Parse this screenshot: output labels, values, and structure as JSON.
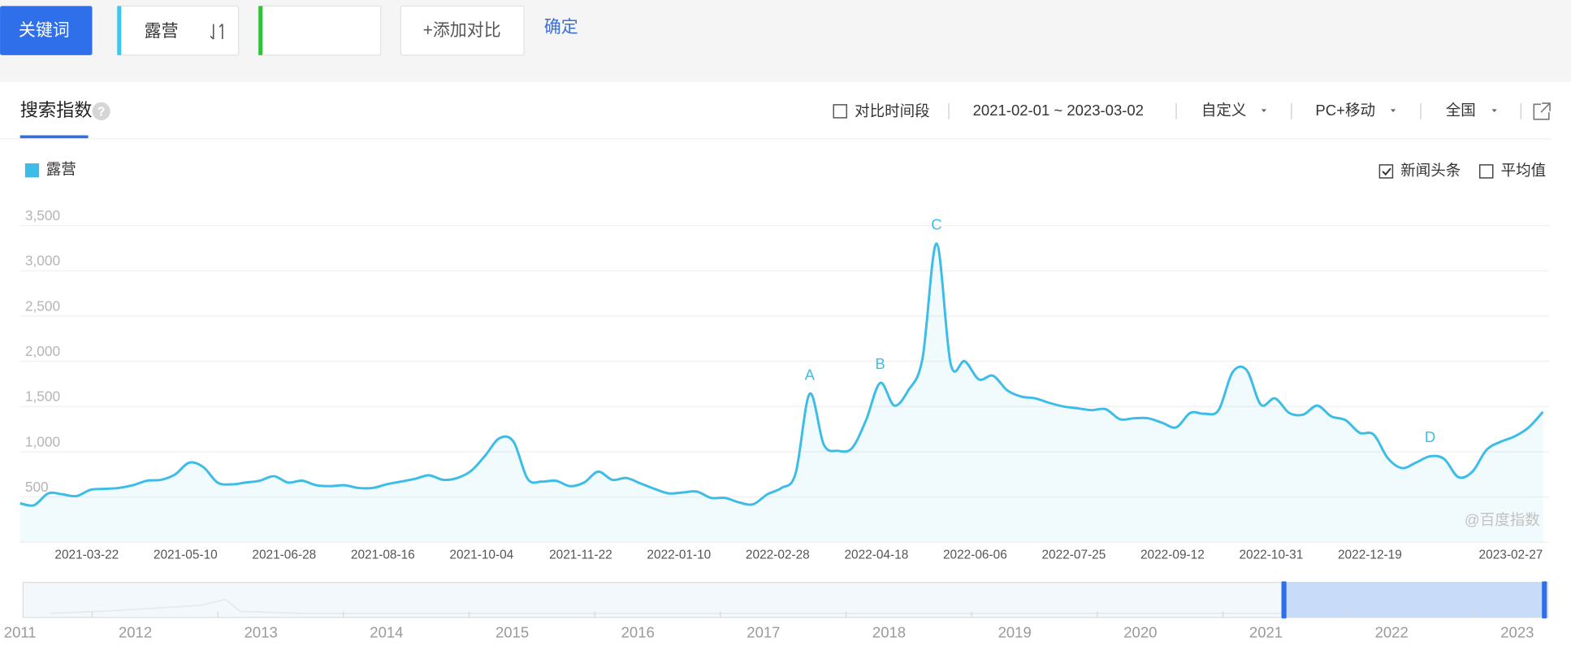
{
  "toolbar": {
    "keyword_button": "关键词",
    "keywords": [
      "露营"
    ],
    "add_compare": "+添加对比",
    "confirm": "确定"
  },
  "tabs": {
    "active": "搜索指数",
    "help": "?"
  },
  "filters": {
    "compare_period": "对比时间段",
    "date_range": "2021-02-01 ~ 2023-03-02",
    "period": "自定义",
    "device": "PC+移动",
    "region": "全国"
  },
  "options": [
    {
      "label": "新闻头条",
      "checked": true
    },
    {
      "label": "平均值",
      "checked": false
    }
  ],
  "watermark": "@百度指数",
  "chart_data": {
    "type": "line",
    "x": [
      "2021-02-01",
      "2021-02-08",
      "2021-02-15",
      "2021-02-22",
      "2021-03-01",
      "2021-03-08",
      "2021-03-15",
      "2021-03-22",
      "2021-03-29",
      "2021-04-05",
      "2021-04-12",
      "2021-04-19",
      "2021-04-26",
      "2021-05-03",
      "2021-05-10",
      "2021-05-17",
      "2021-05-24",
      "2021-05-31",
      "2021-06-07",
      "2021-06-14",
      "2021-06-21",
      "2021-06-28",
      "2021-07-05",
      "2021-07-12",
      "2021-07-19",
      "2021-07-26",
      "2021-08-02",
      "2021-08-09",
      "2021-08-16",
      "2021-08-23",
      "2021-08-30",
      "2021-09-06",
      "2021-09-13",
      "2021-09-20",
      "2021-09-27",
      "2021-10-04",
      "2021-10-11",
      "2021-10-18",
      "2021-10-25",
      "2021-11-01",
      "2021-11-08",
      "2021-11-15",
      "2021-11-22",
      "2021-11-29",
      "2021-12-06",
      "2021-12-13",
      "2021-12-20",
      "2021-12-27",
      "2022-01-03",
      "2022-01-10",
      "2022-01-17",
      "2022-01-24",
      "2022-01-31",
      "2022-02-07",
      "2022-02-14",
      "2022-02-21",
      "2022-02-28",
      "2022-03-07",
      "2022-03-14",
      "2022-03-21",
      "2022-03-28",
      "2022-04-04",
      "2022-04-11",
      "2022-04-18",
      "2022-04-25",
      "2022-05-02",
      "2022-05-09",
      "2022-05-16",
      "2022-05-23",
      "2022-05-30",
      "2022-06-06",
      "2022-06-13",
      "2022-06-20",
      "2022-06-27",
      "2022-07-04",
      "2022-07-11",
      "2022-07-18",
      "2022-07-25",
      "2022-08-01",
      "2022-08-08",
      "2022-08-15",
      "2022-08-22",
      "2022-08-29",
      "2022-09-05",
      "2022-09-12",
      "2022-09-19",
      "2022-09-26",
      "2022-10-03",
      "2022-10-10",
      "2022-10-17",
      "2022-10-24",
      "2022-10-31",
      "2022-11-07",
      "2022-11-14",
      "2022-11-21",
      "2022-11-28",
      "2022-12-05",
      "2022-12-12",
      "2022-12-19",
      "2022-12-26",
      "2023-01-02",
      "2023-01-09",
      "2023-01-16",
      "2023-01-23",
      "2023-01-30",
      "2023-02-06",
      "2023-02-13",
      "2023-02-20",
      "2023-02-27"
    ],
    "series": [
      {
        "name": "露营",
        "color": "#3bbde8",
        "values": [
          430,
          410,
          540,
          530,
          510,
          580,
          590,
          600,
          630,
          680,
          690,
          750,
          880,
          830,
          660,
          640,
          660,
          680,
          730,
          660,
          680,
          630,
          620,
          630,
          600,
          600,
          640,
          670,
          700,
          740,
          690,
          710,
          790,
          960,
          1150,
          1110,
          700,
          670,
          680,
          620,
          660,
          780,
          690,
          710,
          650,
          590,
          540,
          550,
          560,
          490,
          490,
          440,
          420,
          530,
          600,
          760,
          1640,
          1080,
          1010,
          1040,
          1350,
          1760,
          1510,
          1680,
          2030,
          3300,
          1970,
          2000,
          1800,
          1840,
          1680,
          1610,
          1590,
          1540,
          1500,
          1480,
          1460,
          1470,
          1360,
          1370,
          1370,
          1320,
          1270,
          1430,
          1420,
          1460,
          1880,
          1900,
          1520,
          1590,
          1430,
          1410,
          1510,
          1390,
          1350,
          1210,
          1190,
          930,
          820,
          880,
          950,
          920,
          720,
          780,
          1020,
          1110,
          1170,
          1270,
          1440
        ]
      }
    ],
    "xlim": [
      "2021-02-01",
      "2023-03-02"
    ],
    "xticks": [
      "2021-03-22",
      "2021-05-10",
      "2021-06-28",
      "2021-08-16",
      "2021-10-04",
      "2021-11-22",
      "2022-01-10",
      "2022-02-28",
      "2022-04-18",
      "2022-06-06",
      "2022-07-25",
      "2022-09-12",
      "2022-10-31",
      "2022-12-19",
      "2023-02-27"
    ],
    "ylim": [
      0,
      3500
    ],
    "yticks": [
      500,
      {
        "value": 1000,
        "label": "1,000"
      },
      {
        "value": 1500,
        "label": "1,500"
      },
      {
        "value": 2000,
        "label": "2,000"
      },
      {
        "value": 2500,
        "label": "2,500"
      },
      {
        "value": 3000,
        "label": "3,000"
      },
      {
        "value": 3500,
        "label": "3,500"
      }
    ],
    "grid": true,
    "legend": "top-left",
    "annotations": [
      {
        "label": "A",
        "x": "2022-02-28"
      },
      {
        "label": "B",
        "x": "2022-04-04"
      },
      {
        "label": "C",
        "x": "2022-05-02"
      },
      {
        "label": "D",
        "x": "2023-01-02"
      }
    ]
  },
  "navigator": {
    "years": [
      2011,
      2012,
      2013,
      2014,
      2015,
      2016,
      2017,
      2018,
      2019,
      2020,
      2021,
      2022,
      2023
    ]
  }
}
